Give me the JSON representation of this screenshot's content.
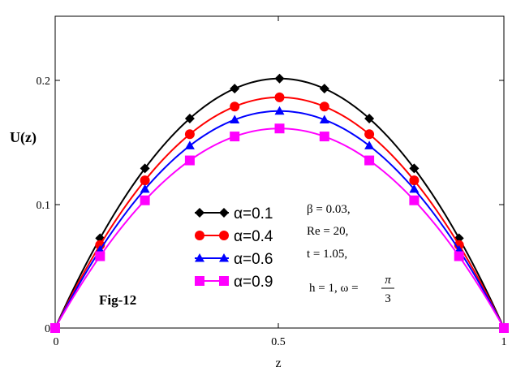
{
  "chart_data": {
    "type": "line",
    "xlabel": "z",
    "ylabel": "U(z)",
    "xlim": [
      0,
      1
    ],
    "ylim": [
      0,
      0.25
    ],
    "x_ticks": [
      "0",
      "0.5",
      "1"
    ],
    "y_ticks": [
      "0",
      "0.1",
      "0.2"
    ],
    "grid": false,
    "legend_position": "center-left",
    "x": [
      0,
      0.1,
      0.2,
      0.3,
      0.4,
      0.5,
      0.6,
      0.7,
      0.8,
      0.9,
      1.0
    ],
    "series": [
      {
        "name": "α=0.1",
        "color": "#000000",
        "marker": "diamond",
        "values": [
          0,
          0.072,
          0.128,
          0.168,
          0.192,
          0.2,
          0.192,
          0.168,
          0.128,
          0.072,
          0
        ]
      },
      {
        "name": "α=0.4",
        "color": "#ff0000",
        "marker": "circle",
        "values": [
          0,
          0.0666,
          0.1184,
          0.1554,
          0.1776,
          0.185,
          0.1776,
          0.1554,
          0.1184,
          0.0666,
          0
        ]
      },
      {
        "name": "α=0.6",
        "color": "#0000ff",
        "marker": "triangle",
        "values": [
          0,
          0.0626,
          0.1114,
          0.1462,
          0.167,
          0.174,
          0.167,
          0.1462,
          0.1114,
          0.0626,
          0
        ]
      },
      {
        "name": "α=0.9",
        "color": "#ff00ff",
        "marker": "square",
        "values": [
          0,
          0.0576,
          0.1024,
          0.1344,
          0.1536,
          0.16,
          0.1536,
          0.1344,
          0.1024,
          0.0576,
          0
        ]
      }
    ],
    "annotations": {
      "beta_label": "β = 0.03,",
      "re_label": "Re = 20,",
      "t_label": "t = 1.05,",
      "h_omega_label": "h = 1, ω =",
      "frac_num": "π",
      "frac_den": "3",
      "fig_label": "Fig-12"
    }
  }
}
